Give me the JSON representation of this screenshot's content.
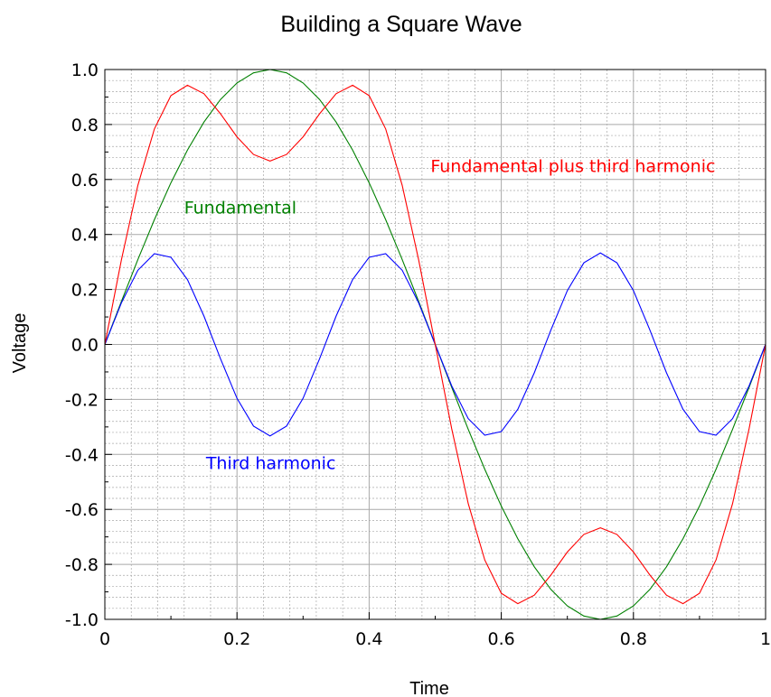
{
  "chart_data": {
    "type": "line",
    "title": "Building a Square Wave",
    "xlabel": "Time",
    "ylabel": "Voltage",
    "xlim": [
      0,
      1
    ],
    "ylim": [
      -1.0,
      1.0
    ],
    "grid": true,
    "x_ticks": [
      {
        "value": 0,
        "label": "0"
      },
      {
        "value": 0.2,
        "label": "0.2"
      },
      {
        "value": 0.4,
        "label": "0.4"
      },
      {
        "value": 0.6,
        "label": "0.6"
      },
      {
        "value": 0.8,
        "label": "0.8"
      },
      {
        "value": 1,
        "label": "1"
      }
    ],
    "y_ticks": [
      {
        "value": 1.0,
        "label": "1.0"
      },
      {
        "value": 0.8,
        "label": "0.8"
      },
      {
        "value": 0.6,
        "label": "0.6"
      },
      {
        "value": 0.4,
        "label": "0.4"
      },
      {
        "value": 0.2,
        "label": "0.2"
      },
      {
        "value": 0.0,
        "label": "0.0"
      },
      {
        "value": -0.2,
        "label": "-0.2"
      },
      {
        "value": -0.4,
        "label": "-0.4"
      },
      {
        "value": -0.6,
        "label": "-0.6"
      },
      {
        "value": -0.8,
        "label": "-0.8"
      },
      {
        "value": -1.0,
        "label": "-1.0"
      }
    ],
    "series": [
      {
        "name": "Fundamental",
        "color": "#008000",
        "x": [
          0,
          0.025,
          0.05,
          0.075,
          0.1,
          0.125,
          0.15,
          0.175,
          0.2,
          0.225,
          0.25,
          0.275,
          0.3,
          0.325,
          0.35,
          0.375,
          0.4,
          0.425,
          0.45,
          0.475,
          0.5,
          0.525,
          0.55,
          0.575,
          0.6,
          0.625,
          0.65,
          0.675,
          0.7,
          0.725,
          0.75,
          0.775,
          0.8,
          0.825,
          0.85,
          0.875,
          0.9,
          0.925,
          0.95,
          0.975,
          1
        ],
        "y": [
          0,
          0.156,
          0.309,
          0.454,
          0.588,
          0.707,
          0.809,
          0.891,
          0.951,
          0.988,
          1.0,
          0.988,
          0.951,
          0.891,
          0.809,
          0.707,
          0.588,
          0.454,
          0.309,
          0.156,
          0,
          -0.156,
          -0.309,
          -0.454,
          -0.588,
          -0.707,
          -0.809,
          -0.891,
          -0.951,
          -0.988,
          -1.0,
          -0.988,
          -0.951,
          -0.891,
          -0.809,
          -0.707,
          -0.588,
          -0.454,
          -0.309,
          -0.156,
          0
        ]
      },
      {
        "name": "Third harmonic",
        "color": "#0000ff",
        "x": [
          0,
          0.025,
          0.05,
          0.075,
          0.1,
          0.125,
          0.15,
          0.175,
          0.2,
          0.225,
          0.25,
          0.275,
          0.3,
          0.325,
          0.35,
          0.375,
          0.4,
          0.425,
          0.45,
          0.475,
          0.5,
          0.525,
          0.55,
          0.575,
          0.6,
          0.625,
          0.65,
          0.675,
          0.7,
          0.725,
          0.75,
          0.775,
          0.8,
          0.825,
          0.85,
          0.875,
          0.9,
          0.925,
          0.95,
          0.975,
          1
        ],
        "y": [
          0,
          0.151,
          0.27,
          0.33,
          0.317,
          0.236,
          0.103,
          -0.052,
          -0.196,
          -0.297,
          -0.333,
          -0.297,
          -0.196,
          -0.052,
          0.103,
          0.236,
          0.317,
          0.33,
          0.27,
          0.151,
          0,
          -0.151,
          -0.27,
          -0.33,
          -0.317,
          -0.236,
          -0.103,
          0.052,
          0.196,
          0.297,
          0.333,
          0.297,
          0.196,
          0.052,
          -0.103,
          -0.236,
          -0.317,
          -0.33,
          -0.27,
          -0.151,
          0
        ]
      },
      {
        "name": "Fundamental plus third harmonic",
        "color": "#ff0000",
        "x": [
          0,
          0.025,
          0.05,
          0.075,
          0.1,
          0.125,
          0.15,
          0.175,
          0.2,
          0.225,
          0.25,
          0.275,
          0.3,
          0.325,
          0.35,
          0.375,
          0.4,
          0.425,
          0.45,
          0.475,
          0.5,
          0.525,
          0.55,
          0.575,
          0.6,
          0.625,
          0.65,
          0.675,
          0.7,
          0.725,
          0.75,
          0.775,
          0.8,
          0.825,
          0.85,
          0.875,
          0.9,
          0.925,
          0.95,
          0.975,
          1
        ],
        "y": [
          0,
          0.307,
          0.579,
          0.784,
          0.905,
          0.943,
          0.912,
          0.839,
          0.755,
          0.691,
          0.667,
          0.691,
          0.755,
          0.839,
          0.912,
          0.943,
          0.905,
          0.784,
          0.579,
          0.307,
          0,
          -0.307,
          -0.579,
          -0.784,
          -0.905,
          -0.943,
          -0.912,
          -0.839,
          -0.755,
          -0.691,
          -0.667,
          -0.691,
          -0.755,
          -0.839,
          -0.912,
          -0.943,
          -0.905,
          -0.784,
          -0.579,
          -0.307,
          0
        ]
      }
    ],
    "annotations": [
      {
        "text": "Fundamental",
        "x": 0.12,
        "y": 0.5,
        "color": "#008000"
      },
      {
        "text": "Third harmonic",
        "x": 0.153,
        "y": -0.43,
        "color": "#0000ff"
      },
      {
        "text": "Fundamental plus third harmonic",
        "x": 0.493,
        "y": 0.65,
        "color": "#ff0000"
      }
    ]
  }
}
